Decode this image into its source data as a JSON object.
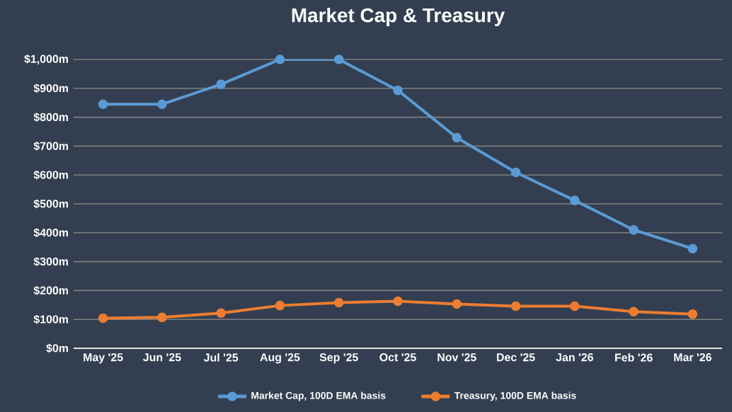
{
  "chart_data": {
    "type": "line",
    "title": "Market Cap & Treasury",
    "categories": [
      "May '25",
      "Jun '25",
      "Jul '25",
      "Aug '25",
      "Sep '25",
      "Oct '25",
      "Nov '25",
      "Dec '25",
      "Jan '26",
      "Feb '26",
      "Mar '26"
    ],
    "series": [
      {
        "name": "Market Cap, 100D EMA basis",
        "color": "#5b9bd5",
        "values": [
          845,
          845,
          914,
          1000,
          1000,
          893,
          729,
          609,
          512,
          410,
          345
        ]
      },
      {
        "name": "Treasury, 100D EMA basis",
        "color": "#ed7d31",
        "values": [
          104,
          107,
          122,
          148,
          158,
          163,
          153,
          146,
          146,
          127,
          118
        ]
      }
    ],
    "ylim": [
      0,
      1000
    ],
    "yticks": [
      {
        "value": 0,
        "label": "$0m"
      },
      {
        "value": 100,
        "label": "$100m"
      },
      {
        "value": 200,
        "label": "$200m"
      },
      {
        "value": 300,
        "label": "$300m"
      },
      {
        "value": 400,
        "label": "$400m"
      },
      {
        "value": 500,
        "label": "$500m"
      },
      {
        "value": 600,
        "label": "$600m"
      },
      {
        "value": 700,
        "label": "$700m"
      },
      {
        "value": 800,
        "label": "$800m"
      },
      {
        "value": 900,
        "label": "$900m"
      },
      {
        "value": 1000,
        "label": "$1,000m"
      }
    ],
    "grid": "y",
    "legend": "bottom",
    "marker": "circle",
    "line_style": "solid"
  }
}
